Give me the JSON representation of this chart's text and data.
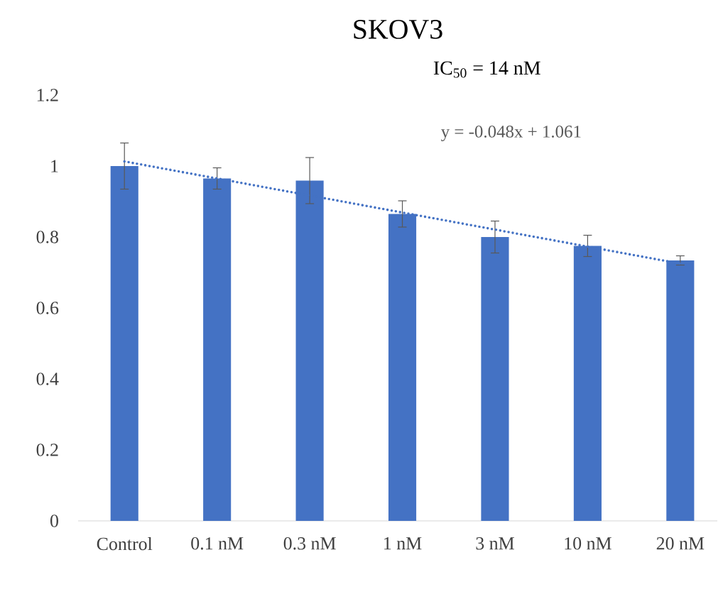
{
  "chart_data": {
    "type": "bar",
    "title": "SKOV3",
    "categories": [
      "Control",
      "0.1 nM",
      "0.3 nM",
      "1 nM",
      "3 nM",
      "10 nM",
      "20 nM"
    ],
    "series": [
      {
        "color": "#4472c4",
        "values": [
          1.0,
          0.965,
          0.959,
          0.865,
          0.8,
          0.775,
          0.734
        ],
        "errors": [
          0.065,
          0.03,
          0.065,
          0.037,
          0.045,
          0.03,
          0.013
        ]
      },
      {
        "type": "line",
        "color": "#4472c4",
        "line_style": "dotted",
        "values": [
          1.013,
          0.965,
          0.917,
          0.869,
          0.821,
          0.773,
          0.725
        ]
      }
    ],
    "ylim": [
      0,
      1.2
    ],
    "yticks": [
      0,
      0.2,
      0.4,
      0.6,
      0.8,
      1,
      1.2
    ],
    "annotations": [
      "IC$_{50}$ = 14 nM",
      "y = -0.048x + 1.061"
    ]
  }
}
